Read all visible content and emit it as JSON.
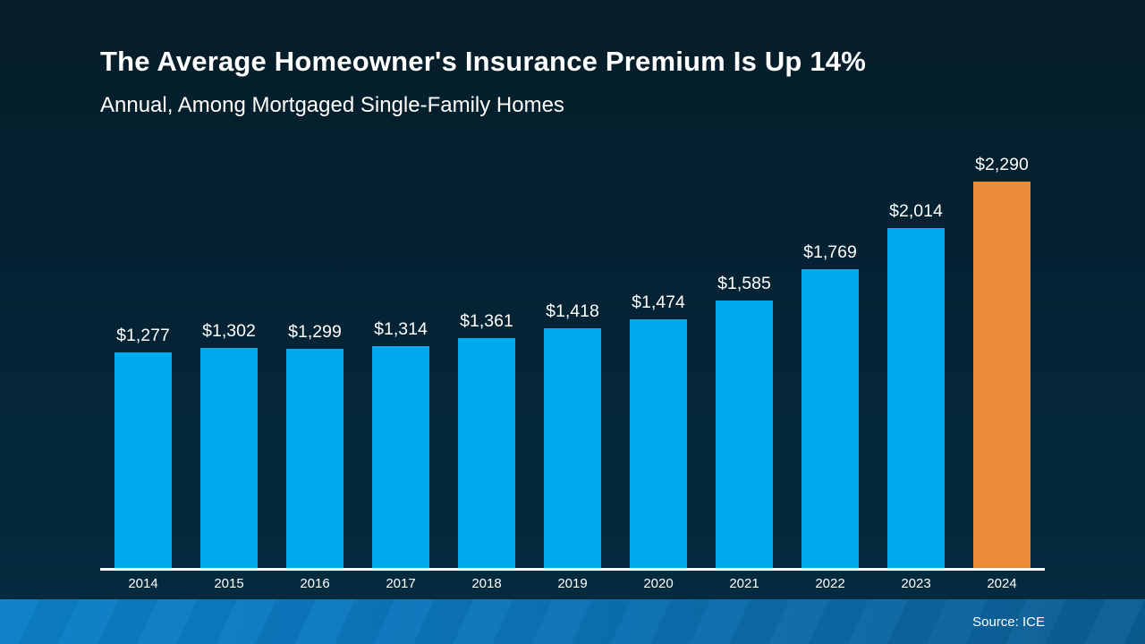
{
  "slide": {
    "title": "The Average Homeowner's Insurance Premium Is Up 14%",
    "subtitle": "Annual, Among Mortgaged Single-Family Homes",
    "source": "Source: ICE"
  },
  "colors": {
    "bar": "#00a9ee",
    "highlight": "#ea8b38",
    "axis": "#ffffff",
    "text": "#ffffff",
    "background_top": "#051d28",
    "background_bottom": "#032a40",
    "footer_left": "#0b80c8",
    "footer_right": "#0b5d92"
  },
  "chart_data": {
    "type": "bar",
    "title": "The Average Homeowner's Insurance Premium Is Up 14%",
    "subtitle": "Annual, Among Mortgaged Single-Family Homes",
    "categories": [
      "2014",
      "2015",
      "2016",
      "2017",
      "2018",
      "2019",
      "2020",
      "2021",
      "2022",
      "2023",
      "2024"
    ],
    "values": [
      1277,
      1302,
      1299,
      1314,
      1361,
      1418,
      1474,
      1585,
      1769,
      2014,
      2290
    ],
    "value_labels": [
      "$1,277",
      "$1,302",
      "$1,299",
      "$1,314",
      "$1,361",
      "$1,418",
      "$1,474",
      "$1,585",
      "$1,769",
      "$2,014",
      "$2,290"
    ],
    "highlight_index": 10,
    "xlabel": "",
    "ylabel": "",
    "ylim": [
      0,
      2400
    ],
    "grid": false,
    "legend_position": "none",
    "source": "Source: ICE"
  }
}
